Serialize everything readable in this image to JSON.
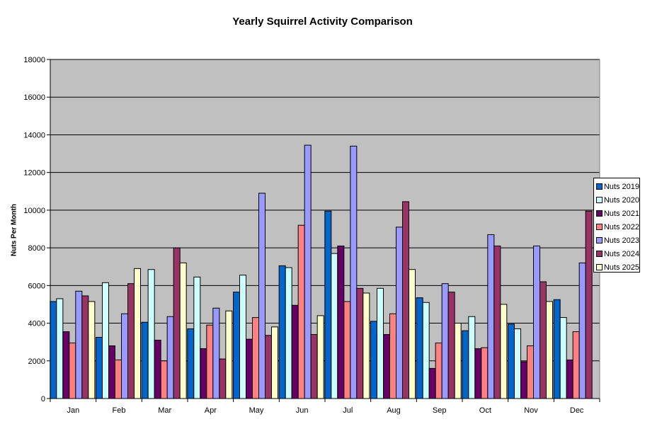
{
  "chart_data": {
    "type": "bar",
    "title": "Yearly Squirrel Activity Comparison",
    "xlabel": "",
    "ylabel": "Nuts Per Month",
    "ylim": [
      0,
      18000
    ],
    "yticks": [
      0,
      2000,
      4000,
      6000,
      8000,
      10000,
      12000,
      14000,
      16000,
      18000
    ],
    "grid": true,
    "legend_position": "right",
    "categories": [
      "Jan",
      "Feb",
      "Mar",
      "Apr",
      "May",
      "Jun",
      "Jul",
      "Aug",
      "Sep",
      "Oct",
      "Nov",
      "Dec"
    ],
    "series": [
      {
        "name": "Nuts 2019",
        "color": "#0066CC",
        "values": [
          5150,
          3250,
          4050,
          3700,
          5650,
          7050,
          9950,
          4100,
          5350,
          3600,
          3950,
          5250
        ]
      },
      {
        "name": "Nuts 2020",
        "color": "#CCFFFF",
        "values": [
          5300,
          6150,
          6850,
          6450,
          6550,
          6950,
          7700,
          5850,
          5100,
          4350,
          3700,
          4300
        ]
      },
      {
        "name": "Nuts 2021",
        "color": "#660066",
        "values": [
          3550,
          2800,
          3100,
          2650,
          3150,
          4950,
          8100,
          3400,
          1600,
          2650,
          1950,
          2050
        ]
      },
      {
        "name": "Nuts 2022",
        "color": "#FF8080",
        "values": [
          2950,
          2050,
          2000,
          3900,
          4300,
          9200,
          5150,
          4500,
          2950,
          2700,
          2800,
          3550
        ]
      },
      {
        "name": "Nuts 2023",
        "color": "#9999FF",
        "values": [
          5700,
          4500,
          4350,
          4800,
          10900,
          13450,
          13400,
          9100,
          6100,
          8700,
          8100,
          7200
        ]
      },
      {
        "name": "Nuts 2024",
        "color": "#993366",
        "values": [
          5450,
          6100,
          8000,
          2100,
          3350,
          3400,
          5850,
          10450,
          5650,
          8100,
          6200,
          9950
        ]
      },
      {
        "name": "Nuts 2025",
        "color": "#FFFFCC",
        "values": [
          5150,
          6900,
          7200,
          4650,
          3800,
          4400,
          5600,
          6850,
          4000,
          5000,
          5150,
          0
        ]
      }
    ]
  },
  "plot_bg": "#C0C0C0"
}
